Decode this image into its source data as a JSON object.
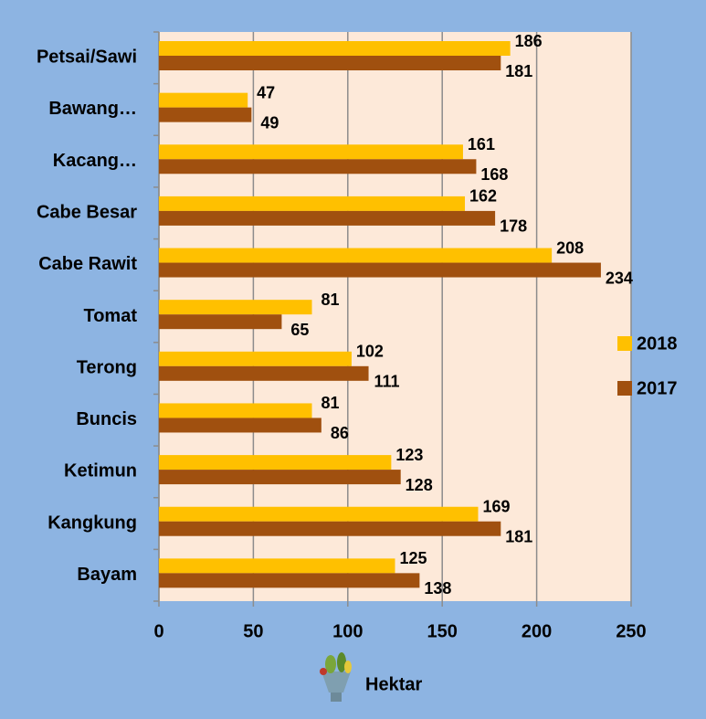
{
  "chart_data": {
    "type": "hbar",
    "x_label": "Hektar",
    "categories": [
      "Petsai/Sawi",
      "Bawang…",
      "Kacang…",
      "Cabe Besar",
      "Cabe Rawit",
      "Tomat",
      "Terong",
      "Buncis",
      "Ketimun",
      "Kangkung",
      "Bayam"
    ],
    "series": [
      {
        "name": "2018",
        "color": "#ffc000",
        "values": [
          186,
          47,
          161,
          162,
          208,
          81,
          102,
          81,
          123,
          169,
          125
        ]
      },
      {
        "name": "2017",
        "color": "#a0500f",
        "values": [
          181,
          49,
          168,
          178,
          234,
          65,
          111,
          86,
          128,
          181,
          138
        ]
      }
    ],
    "xlim": [
      0,
      250
    ],
    "xticks": [
      0,
      50,
      100,
      150,
      200,
      250
    ],
    "grid": true,
    "legend": "right"
  }
}
